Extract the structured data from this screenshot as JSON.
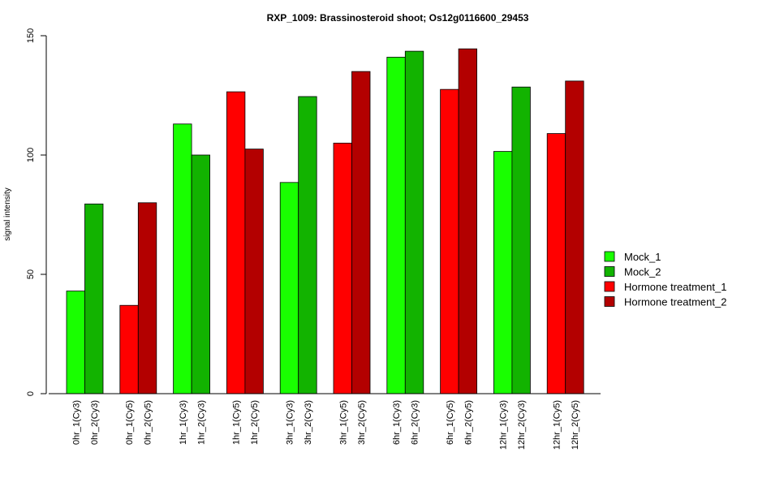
{
  "chart_data": {
    "type": "bar",
    "title": "RXP_1009: Brassinosteroid shoot; Os12g0116600_29453",
    "xlabel": "",
    "ylabel": "signal intensity",
    "ylim": [
      0,
      150
    ],
    "yticks": [
      0,
      50,
      100,
      150
    ],
    "grid": false,
    "legend_position": "right",
    "legend": [
      {
        "name": "Mock_1",
        "color": "#19FF00"
      },
      {
        "name": "Mock_2",
        "color": "#12B300"
      },
      {
        "name": "Hormone treatment_1",
        "color": "#FF0000"
      },
      {
        "name": "Hormone treatment_2",
        "color": "#B30000"
      }
    ],
    "categories": [
      "0hr_1(Cy3)",
      "0hr_2(Cy3)",
      "0hr_1(Cy5)",
      "0hr_2(Cy5)",
      "1hr_1(Cy3)",
      "1hr_2(Cy3)",
      "1hr_1(Cy5)",
      "1hr_2(Cy5)",
      "3hr_1(Cy3)",
      "3hr_2(Cy3)",
      "3hr_1(Cy5)",
      "3hr_2(Cy5)",
      "6hr_1(Cy3)",
      "6hr_2(Cy3)",
      "6hr_1(Cy5)",
      "6hr_2(Cy5)",
      "12hr_1(Cy3)",
      "12hr_2(Cy3)",
      "12hr_1(Cy5)",
      "12hr_2(Cy5)"
    ],
    "values": [
      43,
      79.5,
      37,
      80,
      113,
      100,
      126.5,
      102.5,
      88.5,
      124.5,
      105,
      135,
      141,
      143.5,
      127.5,
      144.5,
      101.5,
      128.5,
      109,
      131
    ],
    "bar_colors": [
      "#19FF00",
      "#12B300",
      "#FF0000",
      "#B30000",
      "#19FF00",
      "#12B300",
      "#FF0000",
      "#B30000",
      "#19FF00",
      "#12B300",
      "#FF0000",
      "#B30000",
      "#19FF00",
      "#12B300",
      "#FF0000",
      "#B30000",
      "#19FF00",
      "#12B300",
      "#FF0000",
      "#B30000"
    ]
  }
}
